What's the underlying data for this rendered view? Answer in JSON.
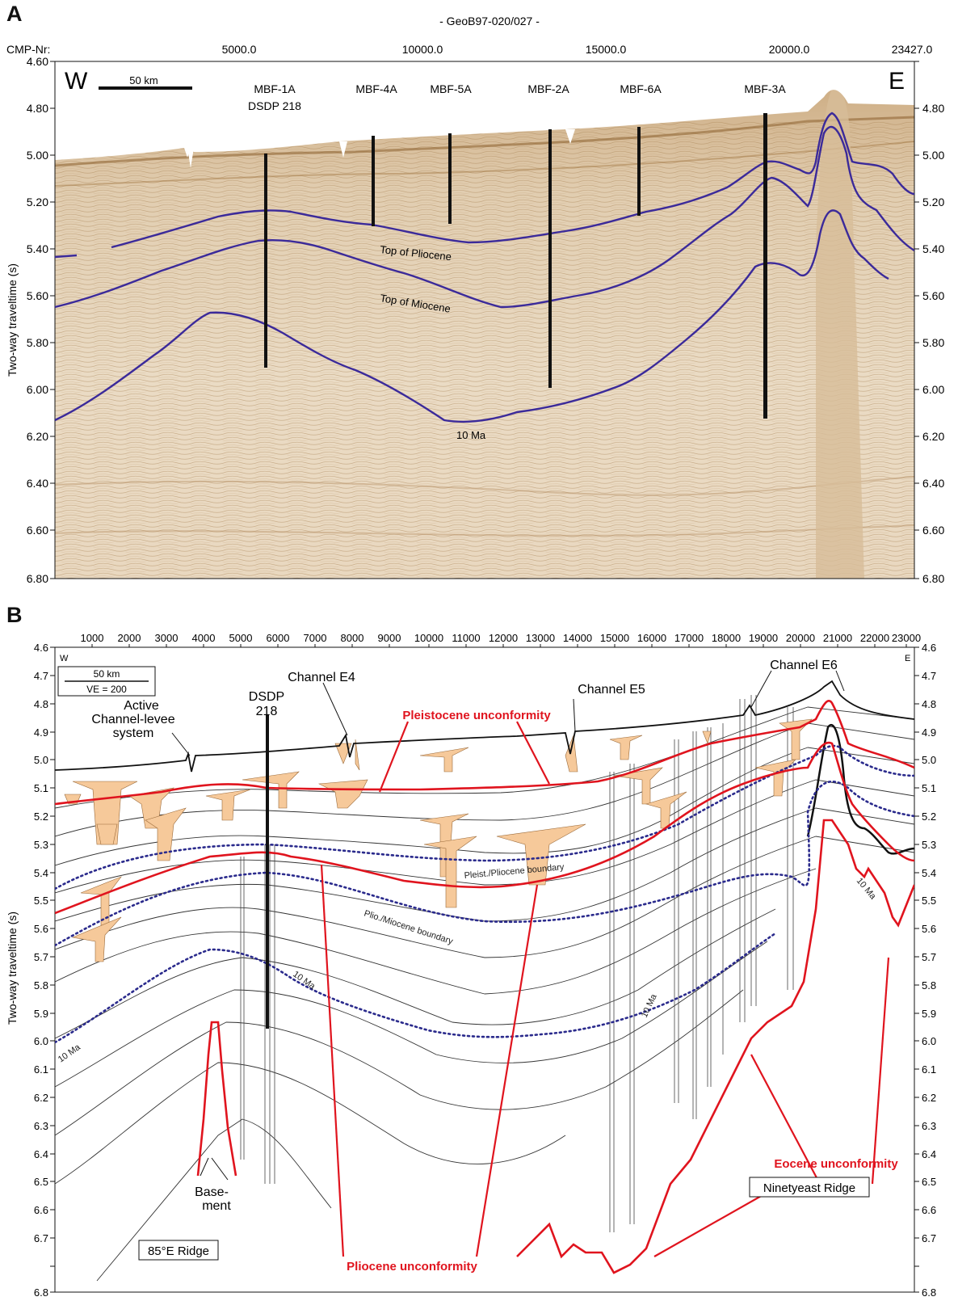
{
  "panelA": {
    "letter": "A",
    "profile_title": "- GeoB97-020/027 -",
    "cmp_label": "CMP-Nr:",
    "cmp_ticks": [
      "5000.0",
      "10000.0",
      "15000.0",
      "20000.0",
      "23427.0"
    ],
    "y_axis_label": "Two-way traveltime (s)",
    "y_ticks": [
      "4.60",
      "4.80",
      "5.00",
      "5.20",
      "5.40",
      "5.60",
      "5.80",
      "6.00",
      "6.20",
      "6.40",
      "6.60",
      "6.80"
    ],
    "west": "W",
    "east": "E",
    "scale_label": "50 km",
    "sites": [
      {
        "label": "MBF-1A",
        "sub": "DSDP 218"
      },
      {
        "label": "MBF-4A",
        "sub": ""
      },
      {
        "label": "MBF-5A",
        "sub": ""
      },
      {
        "label": "MBF-2A",
        "sub": ""
      },
      {
        "label": "MBF-6A",
        "sub": ""
      },
      {
        "label": "MBF-3A",
        "sub": ""
      }
    ],
    "horizon_labels": [
      "Top of Pliocene",
      "Top of Miocene",
      "10 Ma"
    ],
    "colors": {
      "seafloor": "#ffffff",
      "seismic_light": "#eadbc4",
      "seismic_dark": "#8a5f2b",
      "horizon": "#3b2a9a"
    }
  },
  "panelB": {
    "letter": "B",
    "x_ticks": [
      "1000",
      "2000",
      "3000",
      "4000",
      "5000",
      "6000",
      "7000",
      "8000",
      "9000",
      "10000",
      "11000",
      "12000",
      "13000",
      "14000",
      "15000",
      "16000",
      "17000",
      "18000",
      "19000",
      "20000",
      "21000",
      "22000",
      "23000"
    ],
    "y_axis_label": "Two-way traveltime (s)",
    "y_ticks": [
      "4.6",
      "4.7",
      "4.8",
      "4.9",
      "5.0",
      "5.1",
      "5.2",
      "5.3",
      "5.4",
      "5.5",
      "5.6",
      "5.7",
      "5.8",
      "5.9",
      "6.0",
      "6.1",
      "6.2",
      "6.3",
      "6.4",
      "6.5",
      "6.6",
      "6.7",
      "6.8"
    ],
    "west": "W",
    "east": "E",
    "scale_label": "50 km",
    "ve_label": "VE = 200",
    "labels": {
      "active_1": "Active",
      "active_2": "Channel-levee",
      "active_3": "system",
      "dsdp_1": "DSDP",
      "dsdp_2": "218",
      "channel_e4": "Channel E4",
      "channel_e5": "Channel E5",
      "channel_e6": "Channel E6",
      "pleistocene_unconformity": "Pleistocene unconformity",
      "pleist_pliocene_boundary": "Pleist./Pliocene boundary",
      "plio_miocene_boundary": "Plio./Miocene boundary",
      "ten_ma_1": "10 Ma",
      "ten_ma_2": "10 Ma",
      "ten_ma_3": "10 Ma",
      "ten_ma_4": "10 Ma",
      "basement_1": "Base-",
      "basement_2": "ment",
      "ridge_85": "85°E Ridge",
      "ninetyeast": "Ninetyeast Ridge",
      "eocene_unconformity": "Eocene unconformity",
      "pliocene_unconformity": "Pliocene unconformity"
    },
    "colors": {
      "unconformity": "#e0141e",
      "boundary": "#2a2a8c",
      "channel_fill": "#f6c99a",
      "line": "#222222"
    }
  }
}
